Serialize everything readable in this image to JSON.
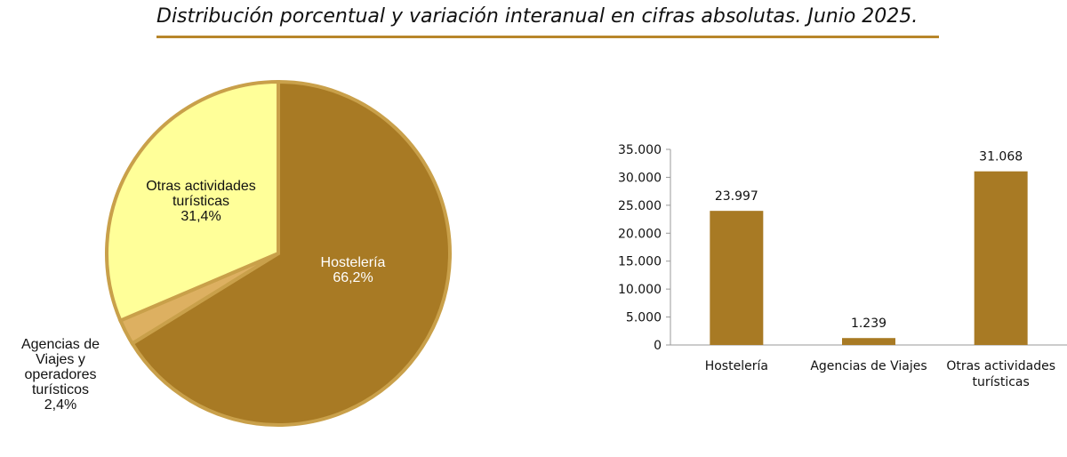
{
  "title": "Distribución porcentual y variación interanual en cifras absolutas. Junio 2025.",
  "chart_data": [
    {
      "type": "pie",
      "slices": [
        {
          "label_lines": [
            "Hostelería",
            "66,2%"
          ],
          "category": "Hostelería",
          "value": 66.2,
          "color": "#a87a24",
          "label_color": "#ffffff"
        },
        {
          "label_lines": [
            "Agencias de",
            "Viajes y",
            "operadores",
            "turísticos",
            "2,4%"
          ],
          "category": "Agencias de Viajes y operadores turísticos",
          "value": 2.4,
          "color": "#ddb061",
          "label_color": "#111111"
        },
        {
          "label_lines": [
            "Otras actividades",
            "turísticas",
            "31,4%"
          ],
          "category": "Otras actividades turísticas",
          "value": 31.4,
          "color": "#ffff99",
          "label_color": "#111111"
        }
      ],
      "slice_border_color": "#c9a04a"
    },
    {
      "type": "bar",
      "categories": [
        [
          "Hostelería"
        ],
        [
          "Agencias de Viajes"
        ],
        [
          "Otras actividades",
          "turísticas"
        ]
      ],
      "values": [
        23997,
        1239,
        31068
      ],
      "value_labels": [
        "23.997",
        "1.239",
        "31.068"
      ],
      "y_ticks": [
        "0",
        "5.000",
        "10.000",
        "15.000",
        "20.000",
        "25.000",
        "30.000",
        "35.000"
      ],
      "ylim": [
        0,
        35000
      ],
      "bar_color": "#a87a24",
      "grid": false
    }
  ]
}
